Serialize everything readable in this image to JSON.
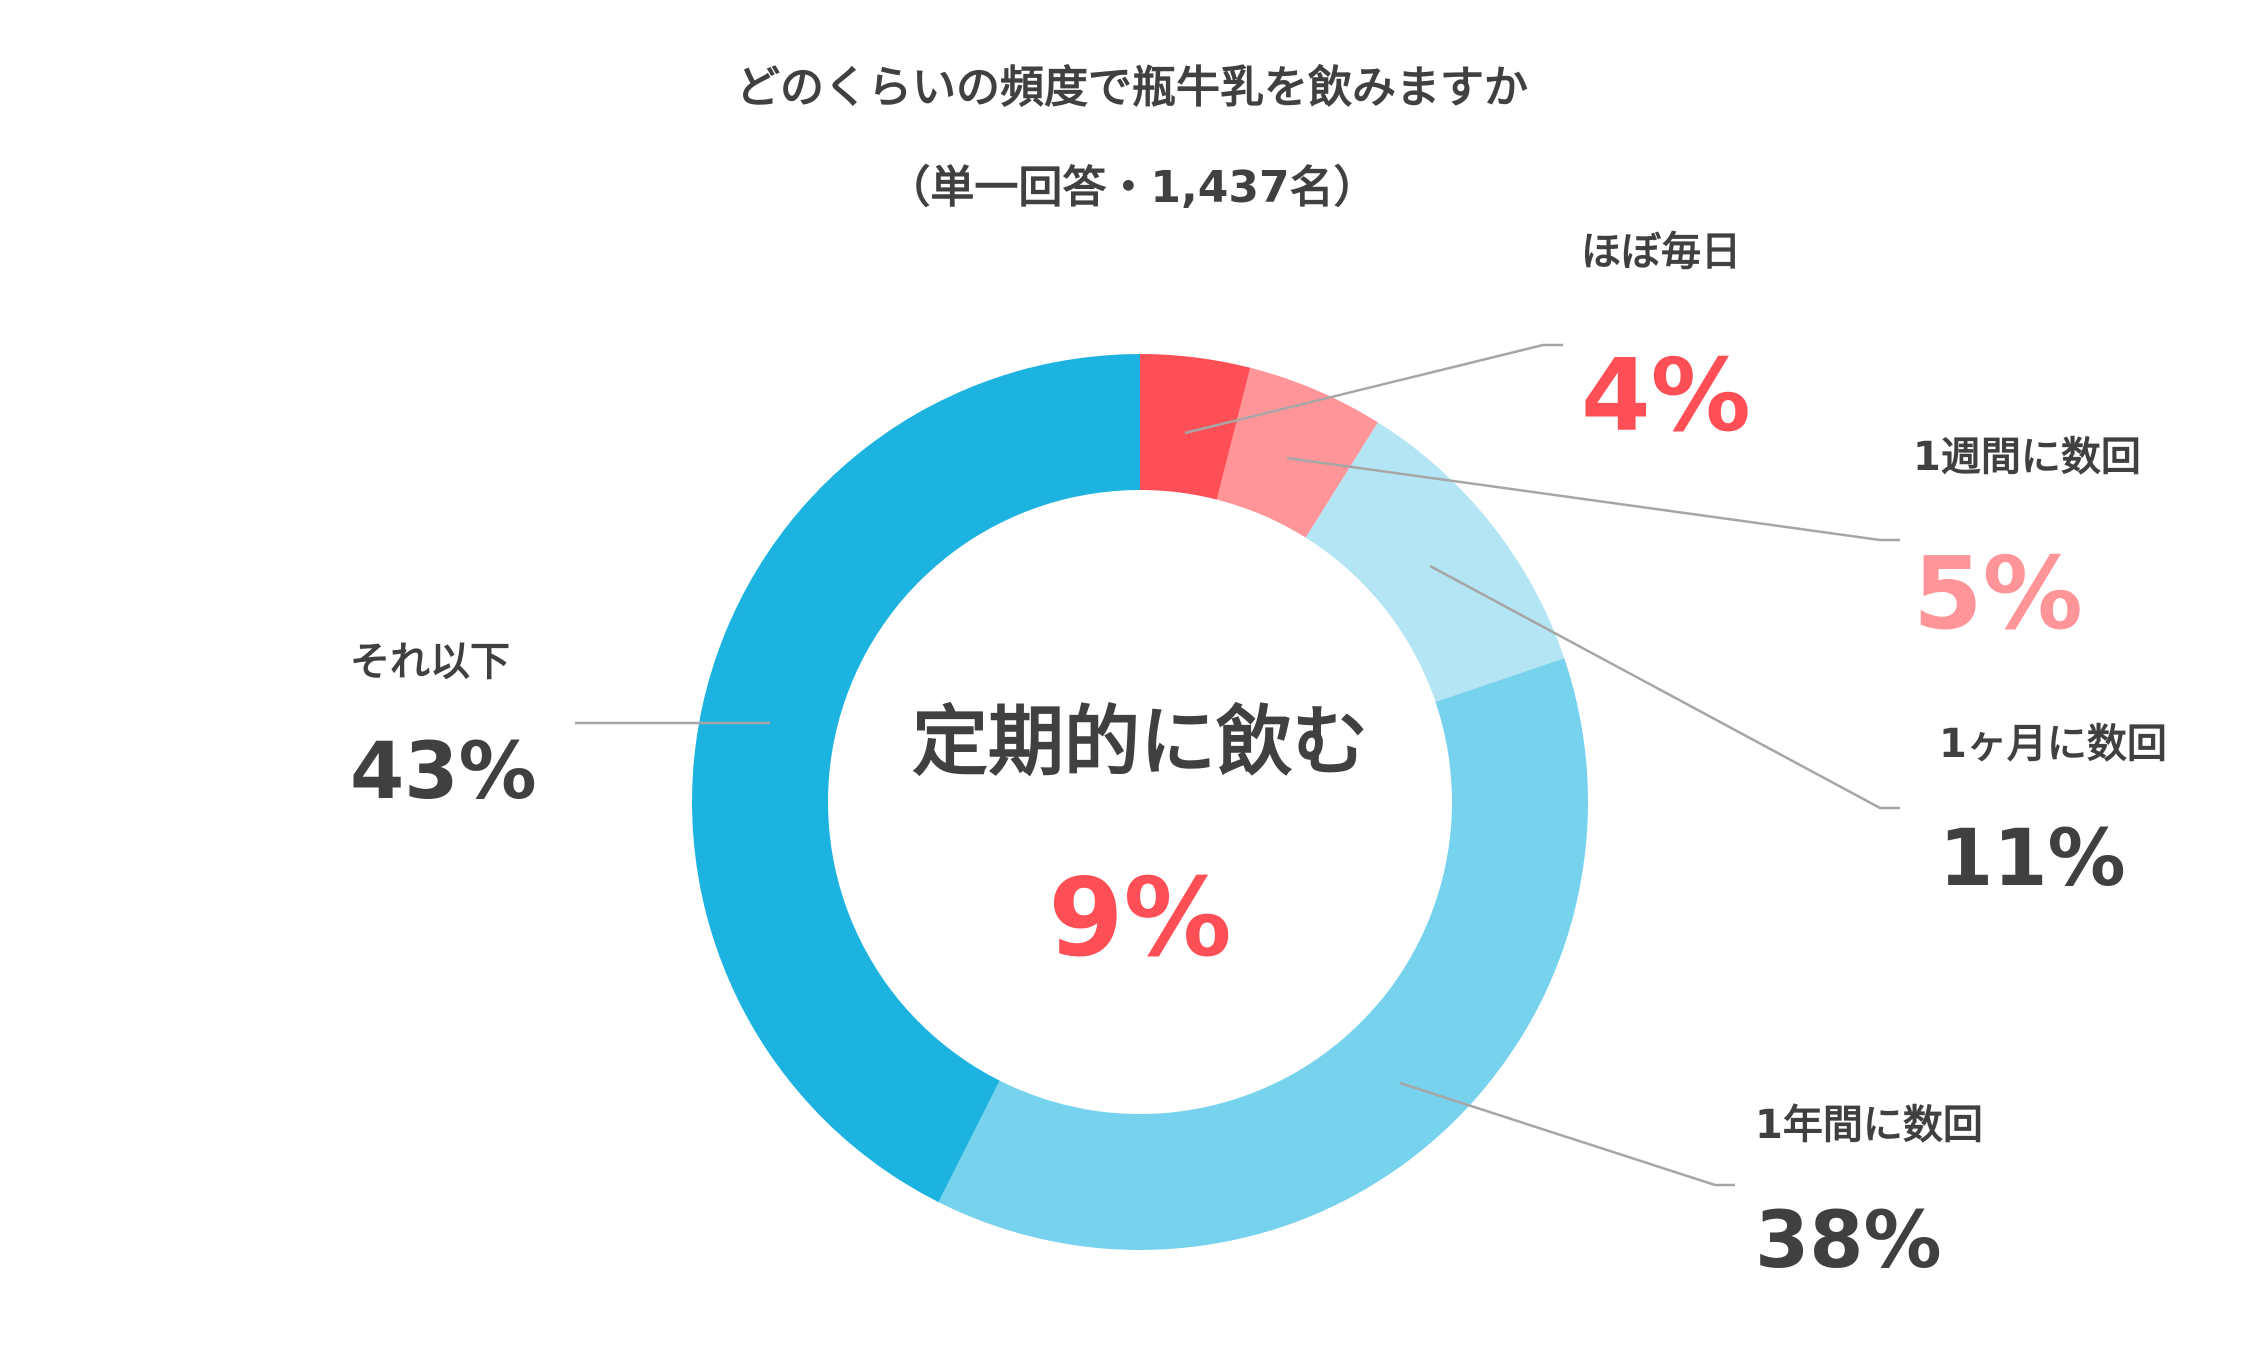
{
  "chart_data": {
    "type": "pie",
    "title": "どのくらいの頻度で瓶牛乳を飲みますか",
    "subtitle": "（単一回答・1,437名）",
    "center_label": "定期的に飲む",
    "center_value": "9%",
    "slices": [
      {
        "label": "ほぼ毎日",
        "value": 4,
        "value_label": "4%",
        "color": "#FF4F56",
        "label_color": "#FF4F56"
      },
      {
        "label": "1週間に数回",
        "value": 5,
        "value_label": "5%",
        "color": "#FF9598",
        "label_color": "#FF9598"
      },
      {
        "label": "1ヶ月に数回",
        "value": 11,
        "value_label": "11%",
        "color": "#B3E5F4",
        "label_color": "#404040"
      },
      {
        "label": "1年間に数回",
        "value": 38,
        "value_label": "38%",
        "color": "#77D2EE",
        "label_color": "#404040"
      },
      {
        "label": "それ以下",
        "value": 43,
        "value_label": "43%",
        "color": "#1DB3E0",
        "label_color": "#404040"
      }
    ],
    "colors": {
      "text": "#404040",
      "accent": "#FF4F56",
      "leader": "#A6A6A6"
    }
  }
}
